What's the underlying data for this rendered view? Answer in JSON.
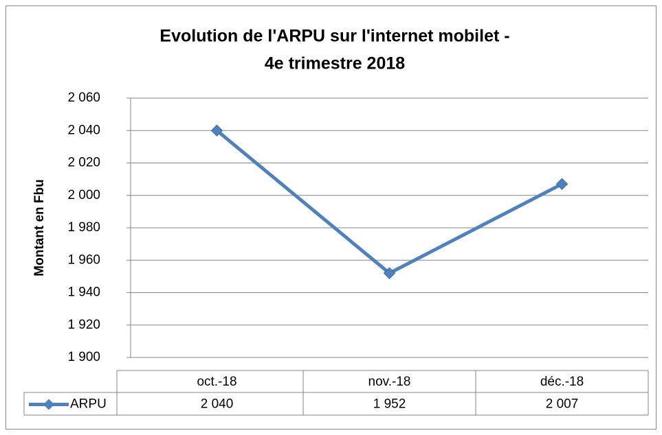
{
  "chart_data": {
    "type": "line",
    "title": [
      "Evolution de l'ARPU sur l'internet mobilet -",
      "4e trimestre 2018"
    ],
    "ylabel": "Montant en Fbu",
    "categories": [
      "oct.-18",
      "nov.-18",
      "déc.-18"
    ],
    "series": [
      {
        "name": "ARPU",
        "color": "#4f81bd",
        "values": [
          2040,
          1952,
          2007
        ],
        "value_labels": [
          "2 040",
          "1 952",
          "2 007"
        ]
      }
    ],
    "ylim": [
      1900,
      2060
    ],
    "yticks": [
      {
        "value": 1900,
        "label": "1 900"
      },
      {
        "value": 1920,
        "label": "1 920"
      },
      {
        "value": 1940,
        "label": "1 940"
      },
      {
        "value": 1960,
        "label": "1 960"
      },
      {
        "value": 1980,
        "label": "1 980"
      },
      {
        "value": 2000,
        "label": "2 000"
      },
      {
        "value": 2020,
        "label": "2 020"
      },
      {
        "value": 2040,
        "label": "2 040"
      },
      {
        "value": 2060,
        "label": "2 060"
      }
    ],
    "grid": true,
    "data_table": true
  }
}
